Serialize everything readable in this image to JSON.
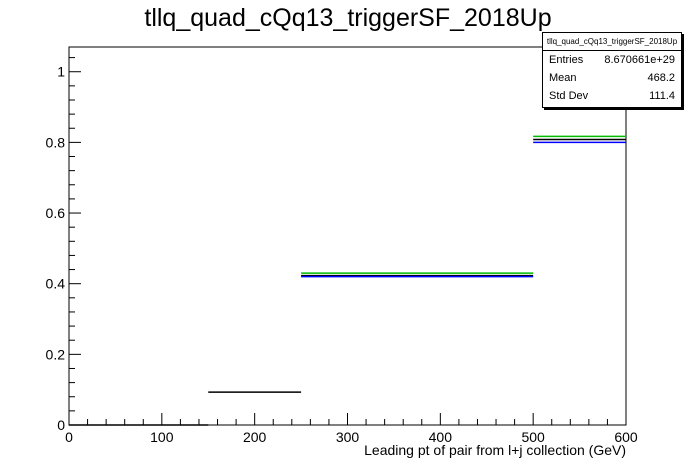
{
  "chart_data": {
    "type": "histogram",
    "title": "tllq_quad_cQq13_triggerSF_2018Up",
    "xlabel": "Leading pt of pair from l+j collection (GeV)",
    "ylabel": "",
    "xlim": [
      0,
      600
    ],
    "ylim": [
      0,
      1.07
    ],
    "x_ticks": [
      "0",
      "100",
      "200",
      "300",
      "400",
      "500",
      "600"
    ],
    "y_ticks": [
      "0",
      "0.2",
      "0.4",
      "0.6",
      "0.8",
      "1"
    ],
    "x_tick_values": [
      0,
      100,
      200,
      300,
      400,
      500,
      600
    ],
    "y_tick_values": [
      0,
      0.2,
      0.4,
      0.6,
      0.8,
      1.0
    ],
    "grid": false,
    "legend": "none",
    "series": [
      {
        "color": "#000000",
        "bins": [
          {
            "x0": 0,
            "x1": 150,
            "y": 0.0
          },
          {
            "x0": 150,
            "x1": 250,
            "y": 0.093
          },
          {
            "x0": 250,
            "x1": 500,
            "y": 0.423
          },
          {
            "x0": 500,
            "x1": 600,
            "y": 0.808
          }
        ]
      },
      {
        "color": "#0000ff",
        "bins": [
          {
            "x0": 250,
            "x1": 500,
            "y": 0.42
          },
          {
            "x0": 500,
            "x1": 600,
            "y": 0.8
          }
        ]
      },
      {
        "color": "#00bb00",
        "bins": [
          {
            "x0": 250,
            "x1": 500,
            "y": 0.43
          },
          {
            "x0": 500,
            "x1": 600,
            "y": 0.817
          }
        ]
      }
    ],
    "stats": {
      "header": "tllq_quad_cQq13_triggerSF_2018Up",
      "rows": [
        {
          "label": "Entries",
          "value": "8.670661e+29"
        },
        {
          "label": "Mean",
          "value": "468.2"
        },
        {
          "label": "Std Dev",
          "value": "111.4"
        }
      ]
    }
  }
}
